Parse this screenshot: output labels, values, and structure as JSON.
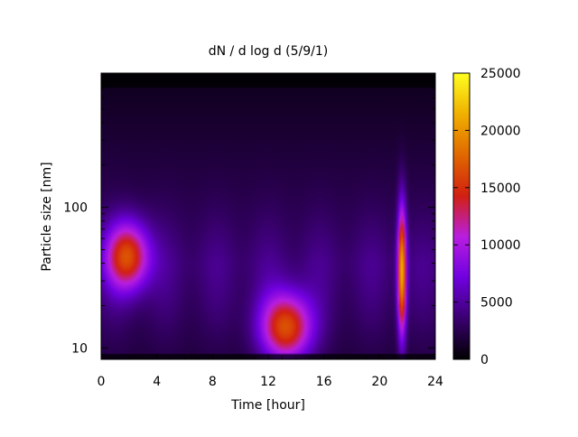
{
  "chart_data": {
    "type": "heatmap",
    "title": "dN / d log d (5/9/1)",
    "xlabel": "Time [hour]",
    "ylabel": "Particle size [nm]",
    "xlim": [
      0,
      24
    ],
    "ylim": [
      8.3,
      900
    ],
    "y_scale": "log",
    "x_ticks": [
      "0",
      "4",
      "8",
      "12",
      "16",
      "20",
      "24"
    ],
    "y_ticks": [
      "10",
      "100"
    ],
    "colorbar": {
      "range": [
        0,
        25000
      ],
      "ticks": [
        "0",
        "5000",
        "10000",
        "15000",
        "20000",
        "25000"
      ],
      "colors": [
        "#000000",
        "#3a0070",
        "#7000e0",
        "#b81ee0",
        "#d22010",
        "#e06800",
        "#f0b000",
        "#ffff20"
      ]
    },
    "background_level": 2000,
    "features": [
      {
        "label": "mode near 2 h",
        "time_h": 1.9,
        "size_nm": 45,
        "peak": 13000
      },
      {
        "label": "growth event",
        "time_h": 13.3,
        "size_nm": 14,
        "peak": 14000
      },
      {
        "label": "spike near 21.5 h",
        "time_h": 21.6,
        "size_nm": 35,
        "peak": 18000
      }
    ],
    "grid": false
  }
}
